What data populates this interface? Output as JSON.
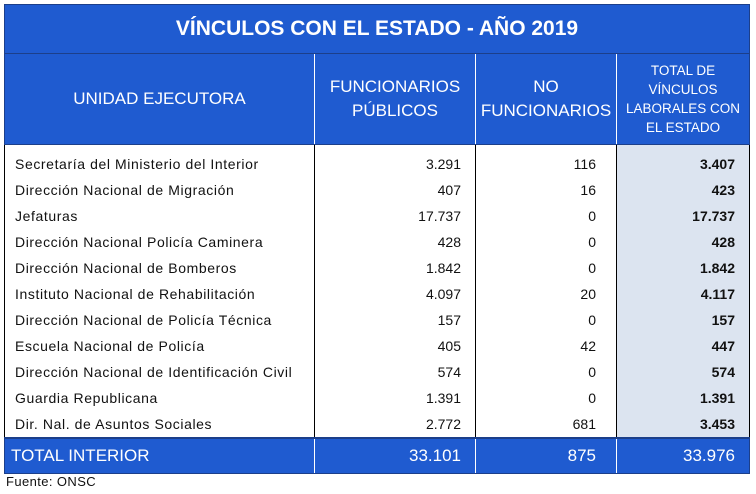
{
  "title": "VÍNCULOS CON EL ESTADO - AÑO 2019",
  "headers": {
    "unit": "UNIDAD EJECUTORA",
    "func_line1": "FUNCIONARIOS",
    "func_line2": "PÚBLICOS",
    "nofunc_line1": "NO",
    "nofunc_line2": "FUNCIONARIOS",
    "total_line1": "TOTAL DE",
    "total_line2": "VÍNCULOS",
    "total_line3": "LABORALES CON",
    "total_line4": "EL ESTADO"
  },
  "rows": [
    {
      "unit": "Secretaría del Ministerio del Interior",
      "funcionarios": "3.291",
      "no_funcionarios": "116",
      "total": "3.407"
    },
    {
      "unit": "Dirección Nacional de Migración",
      "funcionarios": "407",
      "no_funcionarios": "16",
      "total": "423"
    },
    {
      "unit": "Jefaturas",
      "funcionarios": "17.737",
      "no_funcionarios": "0",
      "total": "17.737"
    },
    {
      "unit": "Dirección Nacional Policía Caminera",
      "funcionarios": "428",
      "no_funcionarios": "0",
      "total": "428"
    },
    {
      "unit": "Dirección Nacional de Bomberos",
      "funcionarios": "1.842",
      "no_funcionarios": "0",
      "total": "1.842"
    },
    {
      "unit": "Instituto Nacional de Rehabilitación",
      "funcionarios": "4.097",
      "no_funcionarios": "20",
      "total": "4.117"
    },
    {
      "unit": "Dirección Nacional de Policía Técnica",
      "funcionarios": "157",
      "no_funcionarios": "0",
      "total": "157"
    },
    {
      "unit": "Escuela Nacional de Policía",
      "funcionarios": "405",
      "no_funcionarios": "42",
      "total": "447"
    },
    {
      "unit": "Dirección Nacional de Identificación Civil",
      "funcionarios": "574",
      "no_funcionarios": "0",
      "total": "574"
    },
    {
      "unit": "Guardia Republicana",
      "funcionarios": "1.391",
      "no_funcionarios": "0",
      "total": "1.391"
    },
    {
      "unit": "Dir. Nal. de Asuntos Sociales",
      "funcionarios": "2.772",
      "no_funcionarios": "681",
      "total": "3.453"
    }
  ],
  "total_row": {
    "label": "TOTAL INTERIOR",
    "funcionarios": "33.101",
    "no_funcionarios": "875",
    "total": "33.976"
  },
  "source": "Fuente: ONSC",
  "colors": {
    "header_blue": "#1f5bd0",
    "total_column_shade": "#dce4f0"
  }
}
